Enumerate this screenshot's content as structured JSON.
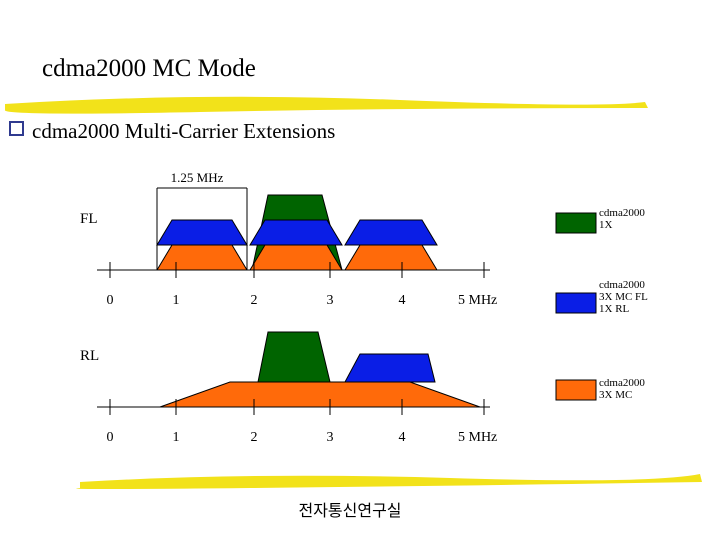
{
  "header": {
    "title": "cdma2000 MC Mode"
  },
  "bullet": "cdma2000 Multi-Carrier Extensions",
  "bandwidth_label": "1.25 MHz",
  "forward_link": {
    "label": "FL",
    "axis_labels": [
      "0",
      "1",
      "2",
      "3",
      "4",
      "5 MHz"
    ]
  },
  "reverse_link": {
    "label": "RL",
    "axis_labels": [
      "0",
      "1",
      "2",
      "3",
      "4",
      "5 MHz"
    ]
  },
  "legend": [
    {
      "lines": [
        "cdma2000",
        "1X"
      ]
    },
    {
      "lines": [
        "cdma2000",
        "3X MC FL",
        "1X RL"
      ]
    },
    {
      "lines": [
        "cdma2000",
        "3X MC"
      ]
    }
  ],
  "footer": "전자통신연구실"
}
